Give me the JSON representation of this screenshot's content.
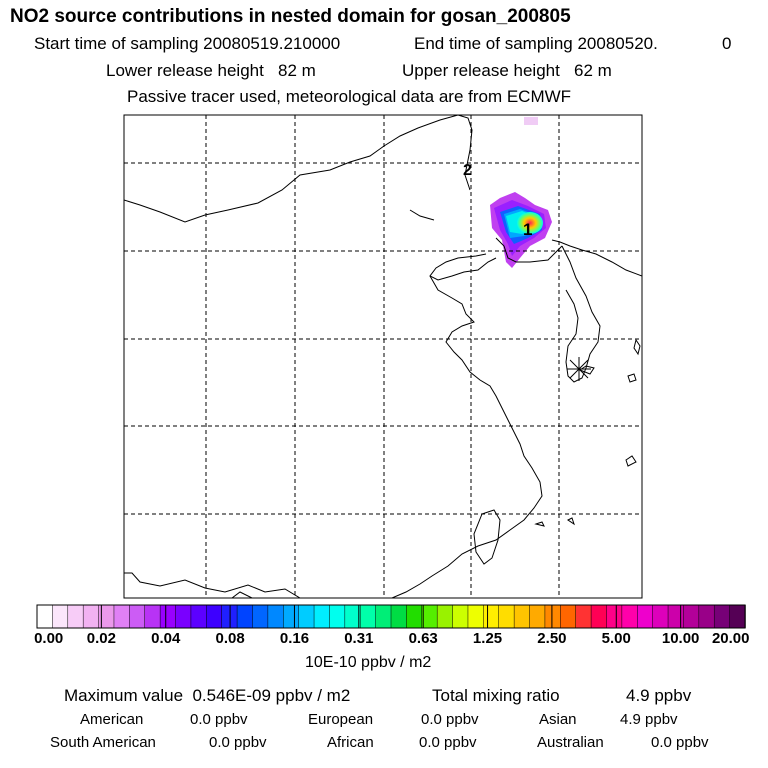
{
  "header": {
    "title": "NO2 source contributions in nested domain for gosan_200805",
    "start_time": "Start time of sampling 20080519.210000",
    "end_time": "End time of sampling 20080520.",
    "end_time_suffix": "0",
    "lower_release": "Lower release height   82 m",
    "upper_release": "Upper release height   62 m",
    "tracer_note": "Passive tracer used, meteorological data are from ECMWF"
  },
  "map": {
    "markers": [
      {
        "label": "1"
      },
      {
        "label": "2"
      }
    ],
    "receptor_symbol": "asterisk"
  },
  "colorbar": {
    "ticks": [
      "0.00",
      "0.02",
      "0.04",
      "0.08",
      "0.16",
      "0.31",
      "0.63",
      "1.25",
      "2.50",
      "5.00",
      "10.00",
      "20.00"
    ],
    "units": "10E-10 ppbv / m2",
    "colors": [
      "#ffffff",
      "#fbe6fb",
      "#f7ccf7",
      "#f2b2f2",
      "#eb99eb",
      "#e080f5",
      "#cc5cf5",
      "#b833f5",
      "#9900ff",
      "#7a00ff",
      "#5c00ff",
      "#3d00ff",
      "#2020ff",
      "#0044ff",
      "#0066ff",
      "#0088ff",
      "#00aaff",
      "#00ccff",
      "#00eeff",
      "#00ffee",
      "#00ffcc",
      "#00ffaa",
      "#00ee77",
      "#00dd44",
      "#22dd00",
      "#55ee00",
      "#99f200",
      "#ccff00",
      "#eeff00",
      "#ffee00",
      "#ffdd00",
      "#ffc400",
      "#ffaa00",
      "#ff8800",
      "#ff6600",
      "#ff3333",
      "#ff0055",
      "#ff0088",
      "#ff00aa",
      "#ee00cc",
      "#dd00bb",
      "#cc00aa",
      "#b30099",
      "#990088",
      "#770077",
      "#550055"
    ]
  },
  "summary": {
    "max_label": "Maximum value  0.546E-09 ppbv / m2",
    "total_label": "Total mixing ratio",
    "total_value": "4.9 ppbv",
    "regions": [
      {
        "name": "American",
        "value": "0.0 ppbv"
      },
      {
        "name": "European",
        "value": "0.0 ppbv"
      },
      {
        "name": "Asian",
        "value": "4.9 ppbv"
      },
      {
        "name": "South American",
        "value": "0.0 ppbv"
      },
      {
        "name": "African",
        "value": "0.0 ppbv"
      },
      {
        "name": "Australian",
        "value": "0.0 ppbv"
      }
    ]
  }
}
